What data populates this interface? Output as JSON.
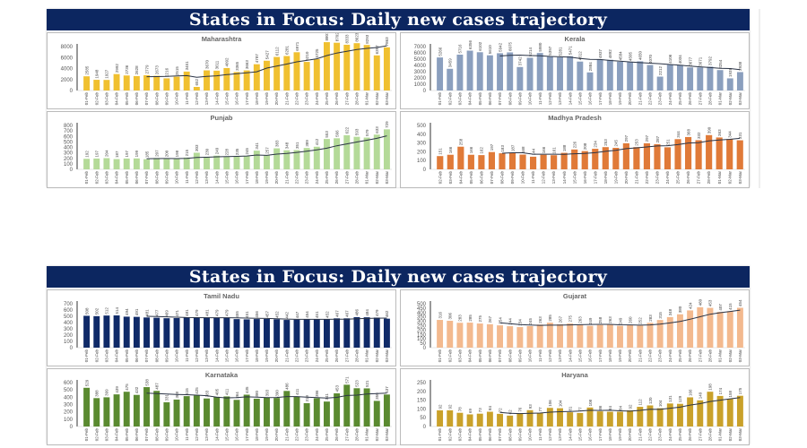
{
  "slides": [
    {
      "title": "States in Focus: Daily new cases trajectory"
    },
    {
      "title": "States in Focus: Daily new cases trajectory"
    }
  ],
  "colors": {
    "title_bar": "#0c2660",
    "trend_line": "#2a3345"
  },
  "chart_data": [
    {
      "type": "bar",
      "title": "Maharashtra",
      "color": "#f0c030",
      "ylim": [
        0,
        8000
      ],
      "yticks": [
        0,
        2000,
        4000,
        6000,
        8000
      ],
      "categories": [
        "01-Feb",
        "02-Feb",
        "03-Feb",
        "04-Feb",
        "05-Feb",
        "06-Feb",
        "07-Feb",
        "08-Feb",
        "09-Feb",
        "10-Feb",
        "11-Feb",
        "12-Feb",
        "13-Feb",
        "14-Feb",
        "15-Feb",
        "16-Feb",
        "17-Feb",
        "18-Feb",
        "19-Feb",
        "20-Feb",
        "21-Feb",
        "22-Feb",
        "23-Feb",
        "24-Feb",
        "25-Feb",
        "26-Feb",
        "27-Feb",
        "28-Feb",
        "01-Mar",
        "02-Mar",
        "03-Mar"
      ],
      "values": [
        2585,
        1948,
        1927,
        2992,
        2736,
        2628,
        2779,
        2673,
        2216,
        2515,
        3451,
        652,
        3670,
        3611,
        4092,
        3365,
        3663,
        4787,
        5427,
        6112,
        6281,
        6971,
        5210,
        5725,
        8807,
        8702,
        8333,
        8623,
        8293,
        6397,
        7863
      ],
      "trend": "7-day moving average"
    },
    {
      "type": "bar",
      "title": "Kerala",
      "color": "#8b9fbe",
      "ylim": [
        0,
        7000
      ],
      "yticks": [
        0,
        1000,
        2000,
        3000,
        4000,
        5000,
        6000,
        7000
      ],
      "categories": [
        "01-Feb",
        "02-Feb",
        "03-Feb",
        "04-Feb",
        "05-Feb",
        "06-Feb",
        "07-Feb",
        "08-Feb",
        "09-Feb",
        "10-Feb",
        "11-Feb",
        "12-Feb",
        "13-Feb",
        "14-Feb",
        "15-Feb",
        "16-Feb",
        "17-Feb",
        "18-Feb",
        "19-Feb",
        "20-Feb",
        "21-Feb",
        "22-Feb",
        "23-Feb",
        "24-Feb",
        "25-Feb",
        "26-Feb",
        "27-Feb",
        "28-Feb",
        "01-Mar",
        "02-Mar",
        "03-Mar"
      ],
      "values": [
        5266,
        3459,
        5716,
        6356,
        6102,
        5610,
        5942,
        6075,
        3742,
        5214,
        5980,
        5397,
        5281,
        5471,
        4612,
        2884,
        4937,
        4892,
        4584,
        4505,
        4650,
        4070,
        2212,
        4106,
        4034,
        3677,
        3671,
        3792,
        3254,
        1938,
        2938
      ],
      "trend": "7-day moving average"
    },
    {
      "type": "bar",
      "title": "Punjab",
      "color": "#b4da98",
      "ylim": [
        0,
        800
      ],
      "yticks": [
        0,
        100,
        200,
        300,
        400,
        500,
        600,
        700,
        800
      ],
      "categories": [
        "01-Feb",
        "02-Feb",
        "03-Feb",
        "04-Feb",
        "05-Feb",
        "06-Feb",
        "07-Feb",
        "08-Feb",
        "09-Feb",
        "10-Feb",
        "11-Feb",
        "12-Feb",
        "13-Feb",
        "14-Feb",
        "15-Feb",
        "16-Feb",
        "17-Feb",
        "18-Feb",
        "19-Feb",
        "20-Feb",
        "21-Feb",
        "22-Feb",
        "23-Feb",
        "24-Feb",
        "25-Feb",
        "26-Feb",
        "27-Feb",
        "28-Feb",
        "01-Mar",
        "02-Mar",
        "03-Mar"
      ],
      "values": [
        192,
        197,
        204,
        187,
        197,
        199,
        185,
        207,
        200,
        198,
        215,
        303,
        230,
        249,
        228,
        235,
        245,
        341,
        257,
        383,
        348,
        351,
        389,
        412,
        553,
        566,
        622,
        593,
        579,
        633,
        729
      ],
      "trend": "7-day moving average"
    },
    {
      "type": "bar",
      "title": "Madhya Pradesh",
      "color": "#e07a38",
      "ylim": [
        0,
        500
      ],
      "yticks": [
        0,
        100,
        200,
        300,
        400,
        500
      ],
      "categories": [
        "02-Feb",
        "03-Feb",
        "04-Feb",
        "05-Feb",
        "06-Feb",
        "07-Feb",
        "08-Feb",
        "09-Feb",
        "10-Feb",
        "11-Feb",
        "12-Feb",
        "13-Feb",
        "14-Feb",
        "15-Feb",
        "16-Feb",
        "17-Feb",
        "18-Feb",
        "19-Feb",
        "20-Feb",
        "21-Feb",
        "22-Feb",
        "23-Feb",
        "24-Feb",
        "25-Feb",
        "26-Feb",
        "27-Feb",
        "28-Feb",
        "01-Mar",
        "02-Mar",
        "03-Mar"
      ],
      "values": [
        151,
        166,
        258,
        166,
        162,
        197,
        183,
        187,
        168,
        144,
        166,
        161,
        188,
        226,
        208,
        234,
        253,
        245,
        297,
        253,
        297,
        287,
        251,
        344,
        368,
        332,
        390,
        363,
        344,
        331
      ],
      "trend": "7-day moving average"
    },
    {
      "type": "bar",
      "title": "Tamil Nadu",
      "color": "#0f2a68",
      "ylim": [
        0,
        700
      ],
      "yticks": [
        0,
        100,
        200,
        300,
        400,
        500,
        600,
        700
      ],
      "categories": [
        "01-Feb",
        "02-Feb",
        "03-Feb",
        "04-Feb",
        "05-Feb",
        "06-Feb",
        "07-Feb",
        "08-Feb",
        "09-Feb",
        "10-Feb",
        "11-Feb",
        "12-Feb",
        "13-Feb",
        "14-Feb",
        "15-Feb",
        "16-Feb",
        "17-Feb",
        "18-Feb",
        "19-Feb",
        "20-Feb",
        "21-Feb",
        "22-Feb",
        "23-Feb",
        "24-Feb",
        "25-Feb",
        "26-Feb",
        "27-Feb",
        "28-Feb",
        "01-Mar",
        "02-Mar",
        "03-Mar"
      ],
      "values": [
        508,
        502,
        512,
        514,
        494,
        491,
        481,
        477,
        469,
        471,
        481,
        479,
        481,
        479,
        479,
        455,
        451,
        456,
        457,
        452,
        442,
        447,
        454,
        451,
        452,
        467,
        467,
        486,
        484,
        479,
        462
      ],
      "trend": "7-day moving average"
    },
    {
      "type": "bar",
      "title": "Gujarat",
      "color": "#f3b98e",
      "ylim": [
        0,
        500
      ],
      "yticks": [
        0,
        50,
        100,
        150,
        200,
        250,
        300,
        350,
        400,
        450,
        500
      ],
      "categories": [
        "01-Feb",
        "02-Feb",
        "03-Feb",
        "04-Feb",
        "05-Feb",
        "06-Feb",
        "07-Feb",
        "08-Feb",
        "09-Feb",
        "10-Feb",
        "11-Feb",
        "12-Feb",
        "13-Feb",
        "14-Feb",
        "15-Feb",
        "16-Feb",
        "17-Feb",
        "18-Feb",
        "19-Feb",
        "20-Feb",
        "21-Feb",
        "22-Feb",
        "23-Feb",
        "24-Feb",
        "25-Feb",
        "26-Feb",
        "27-Feb",
        "28-Feb",
        "01-Mar",
        "02-Mar",
        "03-Mar"
      ],
      "values": [
        316,
        306,
        283,
        285,
        275,
        267,
        254,
        244,
        234,
        245,
        263,
        285,
        267,
        275,
        263,
        249,
        258,
        263,
        249,
        260,
        252,
        283,
        315,
        348,
        380,
        424,
        460,
        453,
        407,
        415,
        454
      ],
      "trend": "7-day moving average"
    },
    {
      "type": "bar",
      "title": "Karnataka",
      "color": "#5a8a30",
      "ylim": [
        0,
        600
      ],
      "yticks": [
        0,
        100,
        200,
        300,
        400,
        500,
        600
      ],
      "categories": [
        "01-Feb",
        "02-Feb",
        "03-Feb",
        "04-Feb",
        "05-Feb",
        "06-Feb",
        "07-Feb",
        "08-Feb",
        "09-Feb",
        "10-Feb",
        "11-Feb",
        "12-Feb",
        "13-Feb",
        "14-Feb",
        "15-Feb",
        "16-Feb",
        "17-Feb",
        "18-Feb",
        "19-Feb",
        "20-Feb",
        "21-Feb",
        "22-Feb",
        "23-Feb",
        "24-Feb",
        "25-Feb",
        "26-Feb",
        "27-Feb",
        "28-Feb",
        "01-Mar",
        "02-Mar",
        "03-Mar"
      ],
      "values": [
        529,
        388,
        399,
        439,
        475,
        432,
        538,
        487,
        331,
        368,
        415,
        425,
        383,
        405,
        411,
        364,
        435,
        380,
        393,
        390,
        486,
        411,
        319,
        386,
        341,
        453,
        571,
        523,
        521,
        350,
        437
      ],
      "trend": "7-day moving average"
    },
    {
      "type": "bar",
      "title": "Haryana",
      "color": "#c9a12a",
      "ylim": [
        0,
        250
      ],
      "yticks": [
        0,
        50,
        100,
        150,
        200,
        250
      ],
      "categories": [
        "01-Feb",
        "02-Feb",
        "03-Feb",
        "04-Feb",
        "05-Feb",
        "06-Feb",
        "07-Feb",
        "08-Feb",
        "09-Feb",
        "10-Feb",
        "11-Feb",
        "12-Feb",
        "13-Feb",
        "14-Feb",
        "15-Feb",
        "16-Feb",
        "17-Feb",
        "18-Feb",
        "19-Feb",
        "20-Feb",
        "21-Feb",
        "22-Feb",
        "23-Feb",
        "24-Feb",
        "25-Feb",
        "26-Feb",
        "27-Feb",
        "28-Feb",
        "01-Mar",
        "02-Mar",
        "03-Mar"
      ],
      "values": [
        92,
        92,
        78,
        69,
        73,
        84,
        72,
        62,
        76,
        93,
        77,
        106,
        104,
        81,
        77,
        108,
        86,
        84,
        84,
        92,
        112,
        120,
        104,
        131,
        129,
        166,
        149,
        198,
        174,
        158,
        175
      ],
      "trend": "7-day moving average"
    }
  ]
}
